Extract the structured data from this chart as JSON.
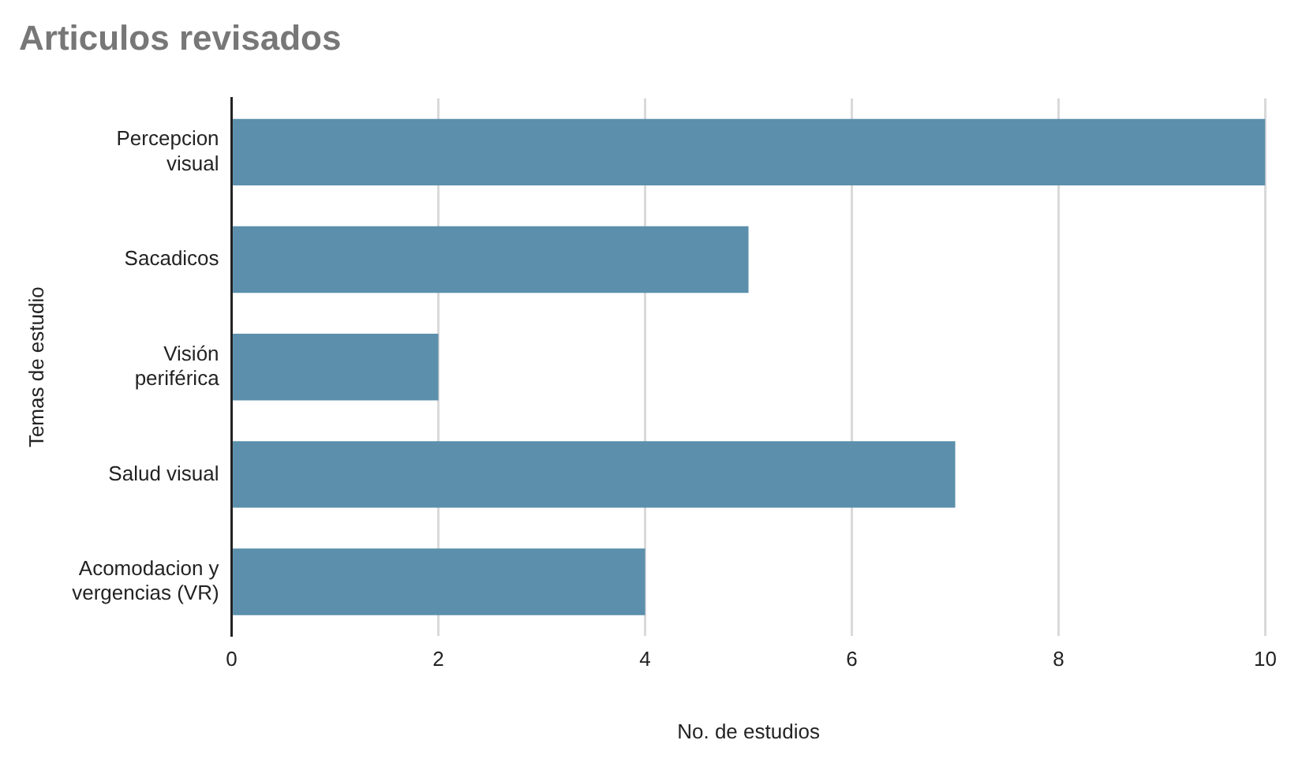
{
  "chart_data": {
    "type": "bar",
    "title": "Articulos revisados",
    "orientation": "horizontal",
    "xlabel": "No. de estudios",
    "ylabel": "Temas de estudio",
    "categories": [
      "Percepcion visual",
      "Sacadicos",
      "Visión periférica",
      "Salud visual",
      "Acomodacion y vergencias (VR)"
    ],
    "values": [
      10,
      5,
      2,
      7,
      4
    ],
    "color": "#5b8fab",
    "xlim": [
      0,
      10
    ],
    "xticks": [
      0,
      2,
      4,
      6,
      8,
      10
    ],
    "grid": "x",
    "legend": false
  }
}
